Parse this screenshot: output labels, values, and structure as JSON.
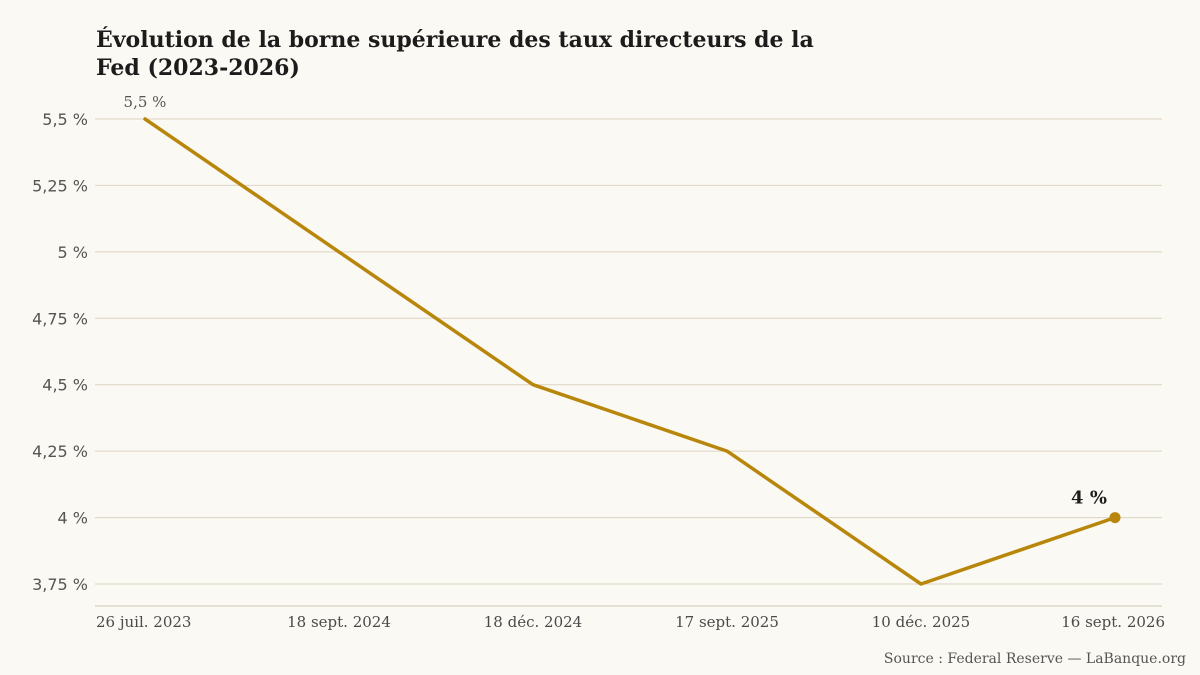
{
  "chart_data": {
    "type": "line",
    "title": "Évolution de la borne supérieure des taux directeurs de la Fed (2023-2026)",
    "categories": [
      "26 juil. 2023",
      "18 sept. 2024",
      "18 déc. 2024",
      "17 sept. 2025",
      "10 déc. 2025",
      "16 sept. 2026"
    ],
    "series": [
      {
        "values": [
          5.5,
          5.0,
          4.5,
          4.25,
          3.75,
          4.0
        ],
        "color": "#B8860B"
      }
    ],
    "y_ticks": [
      3.75,
      4,
      4.25,
      4.5,
      4.75,
      5,
      5.25,
      5.5
    ],
    "y_tick_labels": [
      "3,75 %",
      "4 %",
      "4,25 %",
      "4,5 %",
      "4,75 %",
      "5 %",
      "5,25 %",
      "5,5 %"
    ],
    "ylim": [
      3.75,
      5.5
    ],
    "grid": true,
    "annotations": {
      "first_point": "5,5 %",
      "last_point": "4 %"
    },
    "source": "Source : Federal Reserve — LaBanque.org"
  }
}
